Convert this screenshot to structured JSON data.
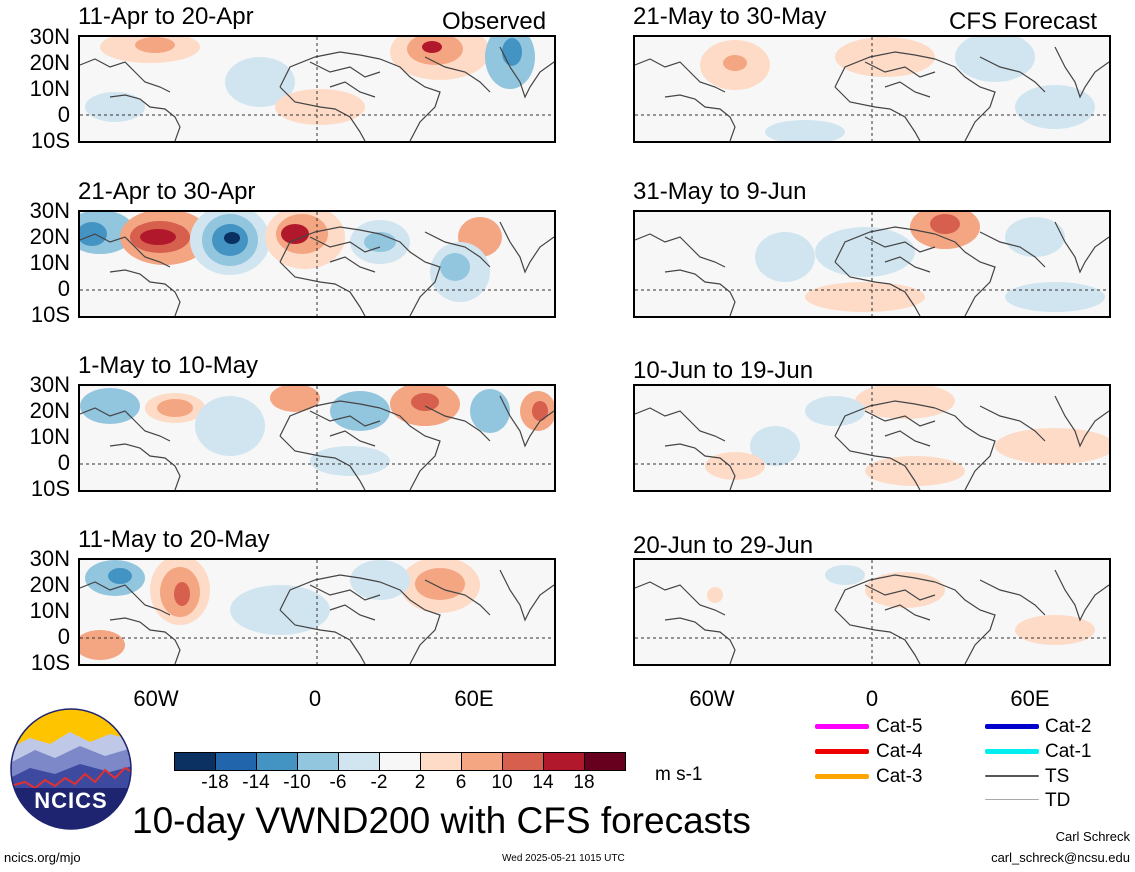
{
  "left_titles": [
    "11-Apr to 20-Apr",
    "21-Apr to 30-Apr",
    "1-May to 10-May",
    "11-May to 20-May"
  ],
  "right_titles": [
    "21-May to 30-May",
    "31-May to 9-Jun",
    "10-Jun to 19-Jun",
    "20-Jun to 29-Jun"
  ],
  "observed_label": "Observed",
  "forecast_label": "CFS Forecast",
  "lat_labels": [
    "30N",
    "20N",
    "10N",
    "0",
    "10S"
  ],
  "lon_labels": [
    "60W",
    "0",
    "60E"
  ],
  "colorbar": {
    "ticks": [
      "-18",
      "-14",
      "-10",
      "-6",
      "-2",
      "2",
      "6",
      "10",
      "14",
      "18"
    ],
    "colors": [
      "#0b3162",
      "#2166ac",
      "#4393c3",
      "#92c5de",
      "#d1e5f0",
      "#f7f7f7",
      "#fddbc7",
      "#f4a582",
      "#d6604d",
      "#b2182b",
      "#67001f"
    ],
    "unit": "m s-1"
  },
  "legend": [
    {
      "label": "Cat-5",
      "color": "#ff00ff"
    },
    {
      "label": "Cat-4",
      "color": "#ee0000"
    },
    {
      "label": "Cat-3",
      "color": "#ffa500"
    },
    {
      "label": "Cat-2",
      "color": "#0000cc"
    },
    {
      "label": "Cat-1",
      "color": "#00eeee"
    },
    {
      "label": "TS",
      "color": "#555555"
    },
    {
      "label": "TD",
      "color": "#aaaaaa"
    }
  ],
  "logo_text": "NCICS",
  "main_title": "10-day VWND200 with CFS forecasts",
  "footer": {
    "left": "ncics.org/mjo",
    "center": "Wed 2025-05-21 1015 UTC",
    "author": "Carl Schreck",
    "email": "carl_schreck@ncsu.edu"
  }
}
